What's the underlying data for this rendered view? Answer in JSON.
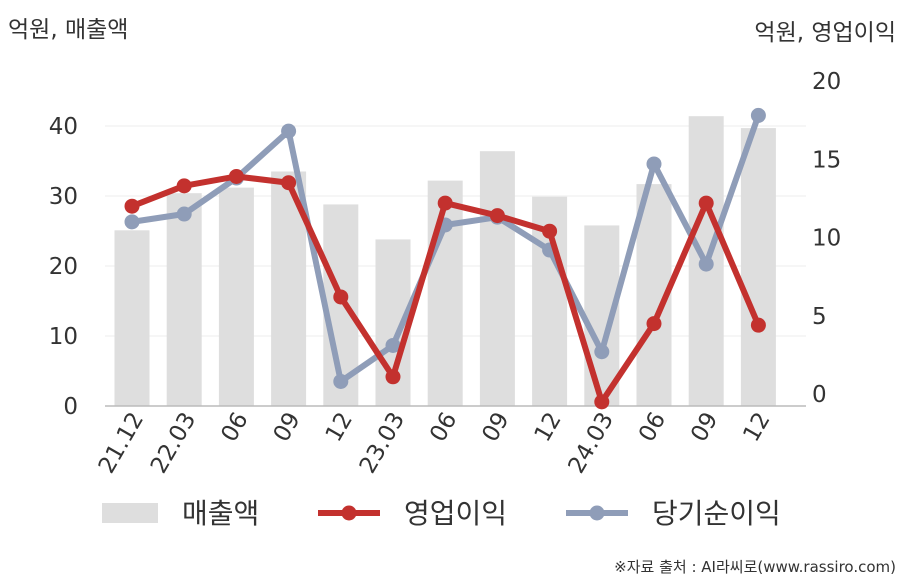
{
  "chart_data": {
    "type": "bar",
    "left_axis_label": "억원, 매출액",
    "right_axis_label": "억원, 영업이익",
    "categories": [
      "21.12",
      "22.03",
      "06",
      "09",
      "12",
      "23.03",
      "06",
      "09",
      "12",
      "24.03",
      "06",
      "09",
      "12"
    ],
    "left_ylim": [
      0,
      45
    ],
    "left_ticks": [
      0,
      10,
      20,
      30,
      40
    ],
    "right_ylim": [
      -1,
      21
    ],
    "right_ticks": [
      0,
      5,
      10,
      15,
      20
    ],
    "grid": true,
    "legend_position": "bottom",
    "series": [
      {
        "name": "매출액",
        "type": "bar",
        "axis": "left",
        "color": "#dedede",
        "values": [
          25.1,
          30.4,
          31.2,
          33.5,
          28.8,
          23.8,
          32.2,
          36.4,
          29.9,
          25.8,
          31.7,
          41.4,
          39.7
        ]
      },
      {
        "name": "영업이익",
        "type": "line",
        "axis": "right",
        "color": "#c3312e",
        "values": [
          12.0,
          13.3,
          13.9,
          13.5,
          6.2,
          1.1,
          12.2,
          11.4,
          10.4,
          -0.5,
          4.5,
          12.2,
          4.4
        ]
      },
      {
        "name": "당기순이익",
        "type": "line",
        "axis": "right",
        "color": "#8f9db8",
        "values": [
          11.0,
          11.5,
          13.8,
          16.8,
          0.8,
          3.1,
          10.8,
          11.3,
          9.2,
          2.7,
          14.7,
          8.3,
          17.8
        ]
      }
    ]
  },
  "source_note": "※자료 출처 : AI라씨로(www.rassiro.com)"
}
